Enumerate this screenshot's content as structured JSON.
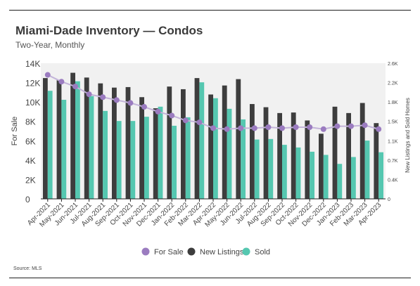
{
  "header": {
    "title": "Miami-Dade Inventory — Condos",
    "subtitle": "Two-Year, Monthly"
  },
  "footer": {
    "source": "Source: MLS"
  },
  "colors": {
    "for_sale": "#9b7cc0",
    "new_listings": "#3d3d3d",
    "sold": "#55c7b0",
    "plot_bg": "#f1f1f1"
  },
  "chart_data": {
    "type": "bar",
    "categories": [
      "Apr-2021",
      "May-2021",
      "Jun-2021",
      "Jul-2021",
      "Aug-2021",
      "Sep-2021",
      "Oct-2021",
      "Nov-2021",
      "Dec-2021",
      "Jan-2022",
      "Feb-2022",
      "Mar-2022",
      "Apr-2022",
      "May-2022",
      "Jun-2022",
      "Jul-2022",
      "Aug-2022",
      "Sep-2022",
      "Oct-2022",
      "Nov-2022",
      "Dec-2022",
      "Jan-2023",
      "Feb-2023",
      "Mar-2023",
      "Apr-2023"
    ],
    "series": [
      {
        "name": "For Sale",
        "kind": "line",
        "axis": "left",
        "values": [
          12800,
          12100,
          11600,
          10800,
          10500,
          10200,
          9900,
          9500,
          9000,
          8600,
          8100,
          7900,
          7300,
          7200,
          7300,
          7300,
          7400,
          7300,
          7400,
          7400,
          7200,
          7500,
          7500,
          7600,
          7200
        ]
      },
      {
        "name": "New Listings",
        "kind": "bar",
        "axis": "right",
        "values": [
          2280,
          2240,
          2380,
          2290,
          2180,
          2100,
          2110,
          1920,
          1710,
          2120,
          2070,
          2280,
          1970,
          2140,
          2260,
          1790,
          1730,
          1620,
          1630,
          1480,
          1230,
          1740,
          1620,
          1810,
          1430
        ]
      },
      {
        "name": "Sold",
        "kind": "bar",
        "axis": "right",
        "values": [
          2040,
          1870,
          2220,
          1940,
          1660,
          1470,
          1470,
          1550,
          1740,
          1380,
          1540,
          2200,
          1900,
          1700,
          1500,
          1120,
          1130,
          1020,
          970,
          890,
          830,
          660,
          790,
          1100,
          880
        ]
      }
    ],
    "y_left": {
      "label": "For Sale",
      "ticks": [
        "0",
        "2K",
        "4K",
        "6K",
        "8K",
        "10K",
        "12K",
        "14K"
      ],
      "min": 0,
      "max": 14000
    },
    "y_right": {
      "label": "New Listings and Sold Homes",
      "ticks": [
        "0",
        "0.4K",
        "0.7K",
        "1.1K",
        "1.5K",
        "1.8K",
        "2.2K",
        "2.6K"
      ],
      "min": 0,
      "max": 2560
    },
    "legend": {
      "position": "bottom",
      "items": [
        {
          "label": "For Sale",
          "marker": "dot"
        },
        {
          "label": "New Listings",
          "marker": "dot"
        },
        {
          "label": "Sold",
          "marker": "dot"
        }
      ]
    },
    "grid": false
  }
}
